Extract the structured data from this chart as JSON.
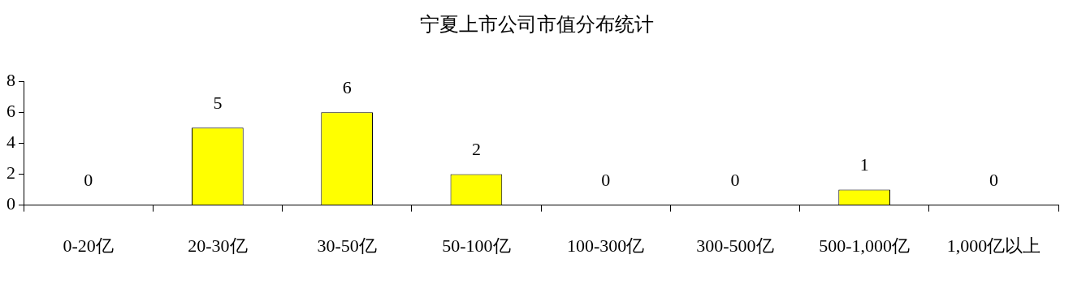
{
  "chart_data": {
    "type": "bar",
    "title": "宁夏上市公司市值分布统计",
    "categories": [
      "0-20亿",
      "20-30亿",
      "30-50亿",
      "50-100亿",
      "100-300亿",
      "300-500亿",
      "500-1,000亿",
      "1,000亿以上"
    ],
    "values": [
      0,
      5,
      6,
      2,
      0,
      0,
      1,
      0
    ],
    "color": "#ffff00",
    "ylim": [
      0,
      8
    ],
    "yticks": [
      0,
      2,
      4,
      6,
      8
    ],
    "grid": false,
    "legend": false,
    "data_labels": true
  }
}
